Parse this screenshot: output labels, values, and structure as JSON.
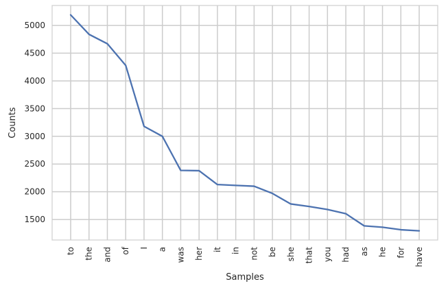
{
  "chart_data": {
    "type": "line",
    "title": "",
    "xlabel": "Samples",
    "ylabel": "Counts",
    "categories": [
      "to",
      "the",
      "and",
      "of",
      "I",
      "a",
      "was",
      "her",
      "it",
      "in",
      "not",
      "be",
      "she",
      "that",
      "you",
      "had",
      "as",
      "he",
      "for",
      "have"
    ],
    "series": [
      {
        "values": [
          5190,
          4840,
          4670,
          4280,
          3180,
          3000,
          2385,
          2380,
          2130,
          2115,
          2100,
          1970,
          1780,
          1735,
          1680,
          1605,
          1385,
          1360,
          1315,
          1295
        ]
      }
    ],
    "ylim": [
      1130,
      5360
    ],
    "yticks": [
      1500,
      2000,
      2500,
      3000,
      3500,
      4000,
      4500,
      5000
    ],
    "grid": true,
    "legend": "none",
    "colors": {
      "line": "#4c72b0",
      "grid": "#cccccc",
      "text": "#262626"
    }
  }
}
